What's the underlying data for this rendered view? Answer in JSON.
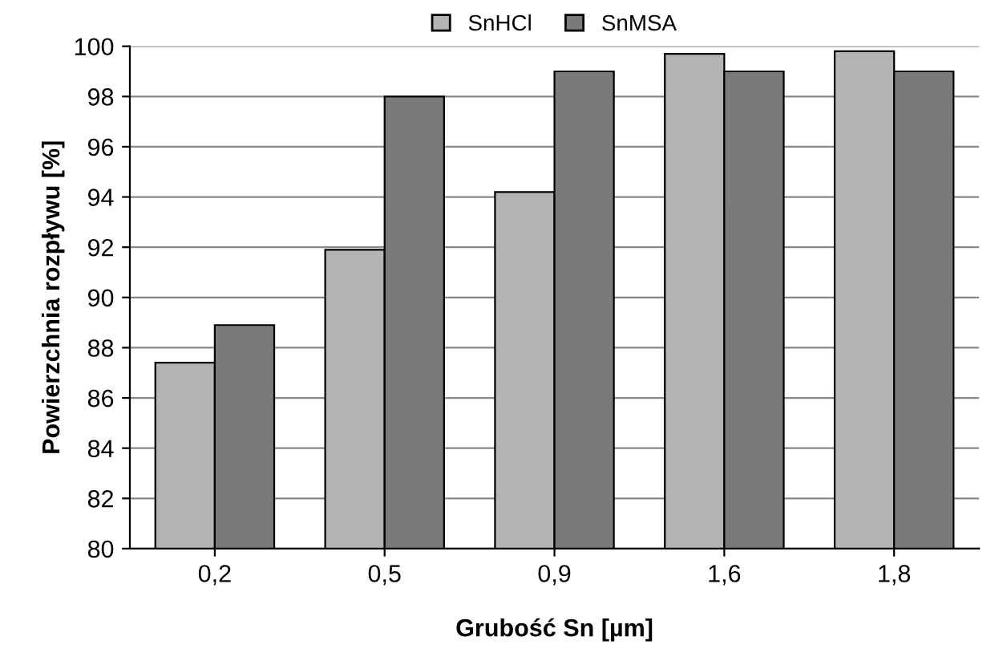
{
  "chart_data": {
    "type": "bar",
    "xlabel": "Grubość Sn [µm]",
    "ylabel": "Powierzchnia rozpływu [%]",
    "categories": [
      "0,2",
      "0,5",
      "0,9",
      "1,6",
      "1,8"
    ],
    "series": [
      {
        "name": "SnHCl",
        "color": "#b4b4b4",
        "values": [
          87.4,
          91.9,
          94.2,
          99.7,
          99.8
        ]
      },
      {
        "name": "SnMSA",
        "color": "#7a7a7a",
        "values": [
          88.9,
          98.0,
          99.0,
          99.0,
          99.0
        ]
      }
    ],
    "ylim": [
      80,
      100
    ],
    "yticks": [
      80,
      82,
      84,
      86,
      88,
      90,
      92,
      94,
      96,
      98,
      100
    ],
    "grid": "y",
    "legend": "top"
  }
}
